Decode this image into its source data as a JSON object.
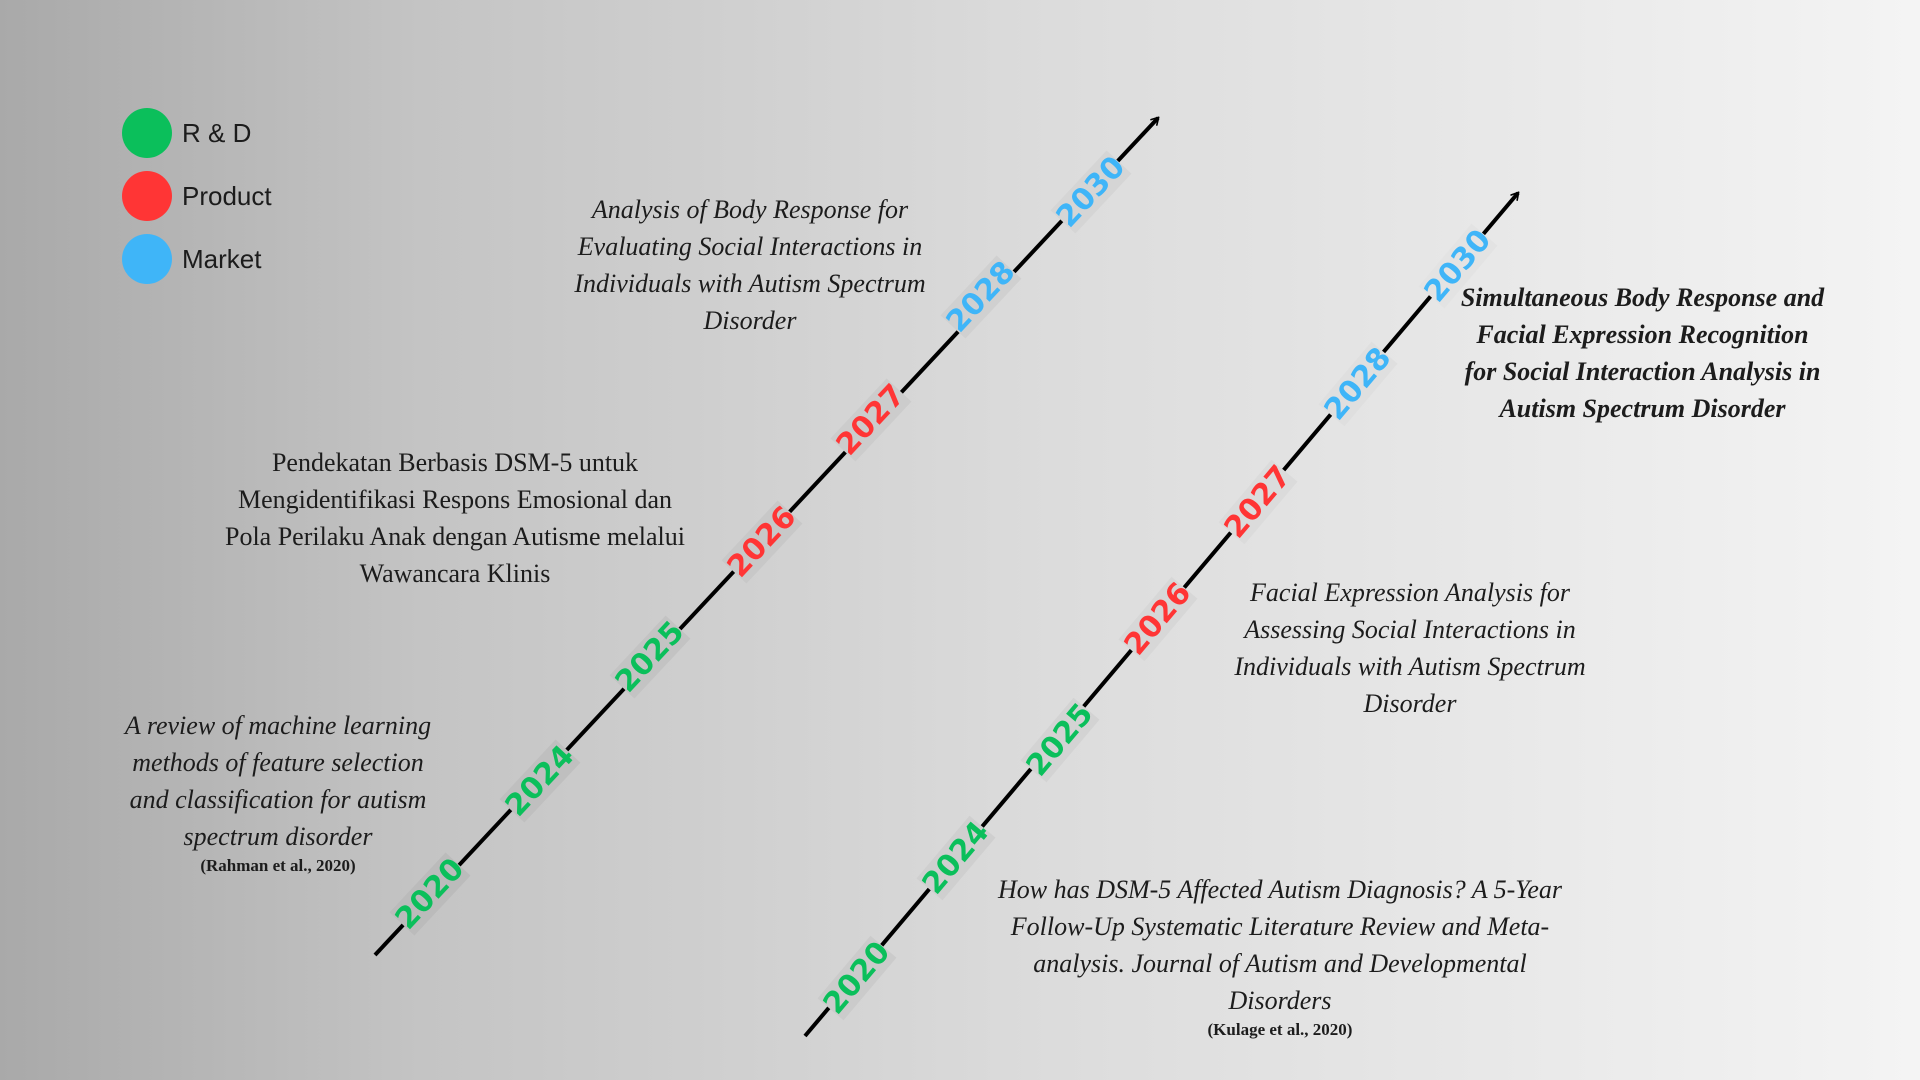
{
  "legend": [
    {
      "label": "R & D",
      "color": "#0bbf5b"
    },
    {
      "label": "Product",
      "color": "#ff3535"
    },
    {
      "label": "Market",
      "color": "#3fb5f8"
    }
  ],
  "timelines": [
    {
      "years": [
        {
          "label": "2020",
          "category": "R & D",
          "color": "#0bbf5b"
        },
        {
          "label": "2024",
          "category": "R & D",
          "color": "#0bbf5b"
        },
        {
          "label": "2025",
          "category": "R & D",
          "color": "#0bbf5b"
        },
        {
          "label": "2026",
          "category": "Product",
          "color": "#ff3535"
        },
        {
          "label": "2027",
          "category": "Product",
          "color": "#ff3535"
        },
        {
          "label": "2028",
          "category": "Market",
          "color": "#3fb5f8"
        },
        {
          "label": "2030",
          "category": "Market",
          "color": "#3fb5f8"
        }
      ]
    },
    {
      "years": [
        {
          "label": "2020",
          "category": "R & D",
          "color": "#0bbf5b"
        },
        {
          "label": "2024",
          "category": "R & D",
          "color": "#0bbf5b"
        },
        {
          "label": "2025",
          "category": "R & D",
          "color": "#0bbf5b"
        },
        {
          "label": "2026",
          "category": "Product",
          "color": "#ff3535"
        },
        {
          "label": "2027",
          "category": "Product",
          "color": "#ff3535"
        },
        {
          "label": "2028",
          "category": "Market",
          "color": "#3fb5f8"
        },
        {
          "label": "2030",
          "category": "Market",
          "color": "#3fb5f8"
        }
      ]
    }
  ],
  "notes": {
    "review_ml": {
      "text": "A review of machine learning methods of feature selection and classification for autism spectrum disorder",
      "citation": "(Rahman et al., 2020)"
    },
    "dsm5_approach": {
      "text": "Pendekatan Berbasis DSM-5 untuk Mengidentifikasi Respons Emosional dan Pola Perilaku Anak dengan Autisme melalui Wawancara Klinis"
    },
    "body_response": {
      "text": "Analysis of Body Response for Evaluating Social Interactions in Individuals with Autism Spectrum Disorder"
    },
    "dsm5_followup": {
      "text": "How has DSM-5 Affected Autism Diagnosis? A 5-Year Follow-Up Systematic Literature Review and Meta-analysis. Journal of Autism and Developmental Disorders",
      "citation": "(Kulage et al., 2020)"
    },
    "facial_expression": {
      "text": "Facial Expression Analysis for Assessing Social Interactions in Individuals with Autism Spectrum Disorder"
    },
    "simultaneous": {
      "text": "Simultaneous Body Response and Facial Expression Recognition for Social Interaction Analysis in Autism Spectrum Disorder"
    }
  }
}
